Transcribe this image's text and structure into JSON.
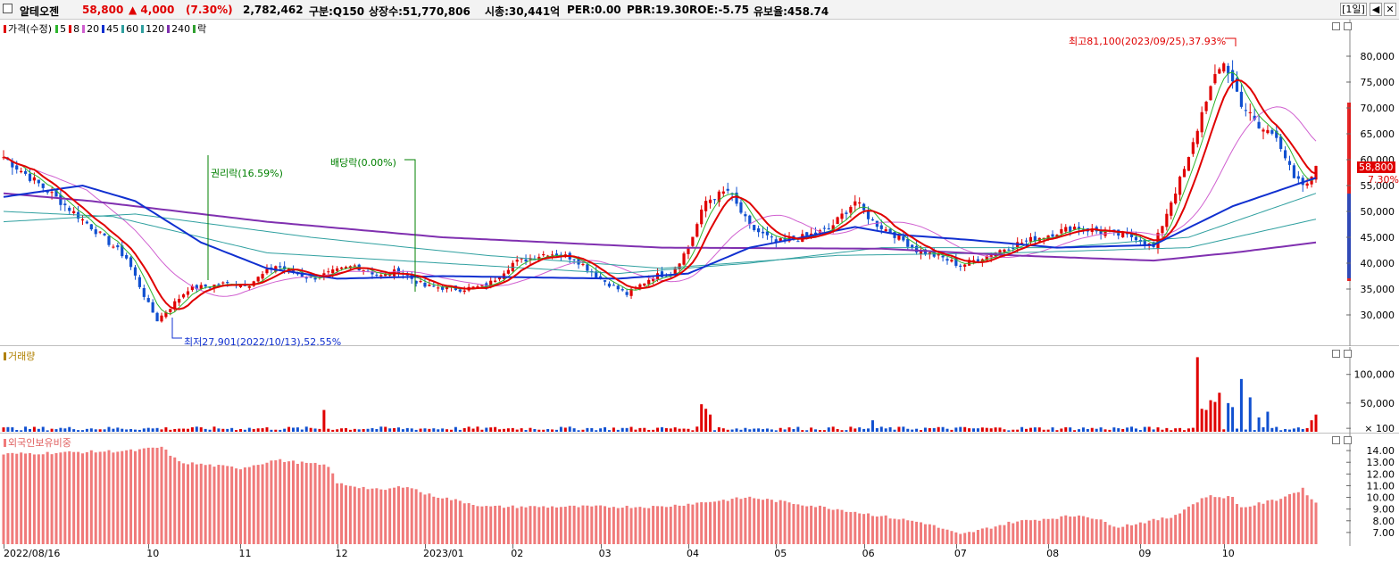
{
  "header": {
    "name": "알테오젠",
    "price": "58,800",
    "change": "▲ 4,000",
    "change_pct": "(7.30%)",
    "volume": "2,782,462",
    "market": "구분:Q150",
    "shares": "상장수:51,770,806",
    "cap": "시총:30,441억",
    "per": "PER:0.00",
    "pbr": "PBR:19.30",
    "roe": "ROE:-5.75",
    "retention": "유보율:458.74",
    "period_btn": "[1일]",
    "prev_btn": "◀",
    "close_btn": "✕"
  },
  "price_pane": {
    "legend_title": "가격(수정)",
    "legend": [
      {
        "label": "5",
        "color": "#2db52d"
      },
      {
        "label": "8",
        "color": "#e00000"
      },
      {
        "label": "20",
        "color": "#d060d0"
      },
      {
        "label": "45",
        "color": "#1030d0"
      },
      {
        "label": "60",
        "color": "#30a0a0"
      },
      {
        "label": "120",
        "color": "#30a0a0"
      },
      {
        "label": "240",
        "color": "#8030b0"
      },
      {
        "label": "락",
        "color": "#30a030"
      }
    ],
    "annotation_high": "최고81,100(2023/09/25),37.93%",
    "annotation_low": "최저27,901(2022/10/13),52.55%",
    "annotation_rights": "권리락(16.59%)",
    "annotation_dividend": "배당락(0.00%)",
    "last_price_badge": "58,800",
    "last_pct_badge": "7.30%"
  },
  "volume_pane": {
    "title": "거래량"
  },
  "foreign_pane": {
    "title": "외국인보유비중"
  },
  "colors": {
    "up": "#e00000",
    "down": "#1050d0",
    "ma5": "#2db52d",
    "ma8": "#e00000",
    "ma20": "#d060d0",
    "ma45": "#1030d0",
    "ma60": "#30a0a0",
    "ma240": "#8030b0",
    "foreign": "#f07a7a",
    "volume_up": "#e00000",
    "volume_down": "#1050d0"
  },
  "chart_data": [
    {
      "type": "line",
      "name": "가격(수정)",
      "ylim": [
        25000,
        85000
      ],
      "yticks": [
        "80,000",
        "75,000",
        "70,000",
        "65,000",
        "60,000",
        "55,000",
        "50,000",
        "45,000",
        "40,000",
        "35,000",
        "30,000"
      ],
      "x_labels": [
        "2022/08/16",
        "10",
        "11",
        "12",
        "2023/01",
        "02",
        "03",
        "04",
        "05",
        "06",
        "07",
        "08",
        "09",
        "10"
      ],
      "x_label_index": [
        0,
        33,
        54,
        76,
        96,
        116,
        136,
        156,
        176,
        196,
        217,
        238,
        259,
        278
      ],
      "price_anchors": [
        [
          0,
          60500
        ],
        [
          10,
          54000
        ],
        [
          20,
          47000
        ],
        [
          28,
          41000
        ],
        [
          33,
          32000
        ],
        [
          35,
          29000
        ],
        [
          38,
          31500
        ],
        [
          42,
          35000
        ],
        [
          50,
          36000
        ],
        [
          56,
          36000
        ],
        [
          62,
          39500
        ],
        [
          70,
          37000
        ],
        [
          80,
          39500
        ],
        [
          86,
          37500
        ],
        [
          90,
          38500
        ],
        [
          96,
          35500
        ],
        [
          104,
          35000
        ],
        [
          110,
          35500
        ],
        [
          116,
          40000
        ],
        [
          124,
          42000
        ],
        [
          130,
          41000
        ],
        [
          136,
          37000
        ],
        [
          142,
          34000
        ],
        [
          148,
          37500
        ],
        [
          152,
          38000
        ],
        [
          156,
          43000
        ],
        [
          160,
          52000
        ],
        [
          165,
          54000
        ],
        [
          170,
          47000
        ],
        [
          176,
          44000
        ],
        [
          182,
          45000
        ],
        [
          188,
          46500
        ],
        [
          194,
          52000
        ],
        [
          198,
          48000
        ],
        [
          204,
          45000
        ],
        [
          208,
          42500
        ],
        [
          214,
          41000
        ],
        [
          218,
          39500
        ],
        [
          224,
          41500
        ],
        [
          230,
          43500
        ],
        [
          236,
          45000
        ],
        [
          244,
          47000
        ],
        [
          250,
          46000
        ],
        [
          258,
          45000
        ],
        [
          262,
          43000
        ],
        [
          266,
          52000
        ],
        [
          270,
          60000
        ],
        [
          274,
          72000
        ],
        [
          278,
          79000
        ],
        [
          282,
          71000
        ],
        [
          286,
          66000
        ],
        [
          290,
          65000
        ],
        [
          294,
          56000
        ],
        [
          297,
          54800
        ],
        [
          299,
          58800
        ]
      ],
      "ma240_anchors": [
        [
          0,
          53500
        ],
        [
          20,
          52000
        ],
        [
          60,
          48000
        ],
        [
          100,
          45000
        ],
        [
          150,
          43000
        ],
        [
          200,
          42800
        ],
        [
          230,
          41500
        ],
        [
          262,
          40500
        ],
        [
          280,
          42000
        ],
        [
          299,
          44000
        ]
      ],
      "ma45_anchors": [
        [
          0,
          52800
        ],
        [
          18,
          55000
        ],
        [
          30,
          52000
        ],
        [
          45,
          44000
        ],
        [
          60,
          39000
        ],
        [
          76,
          37000
        ],
        [
          100,
          37500
        ],
        [
          140,
          37000
        ],
        [
          156,
          38000
        ],
        [
          170,
          43000
        ],
        [
          194,
          47000
        ],
        [
          204,
          45500
        ],
        [
          220,
          44500
        ],
        [
          240,
          43000
        ],
        [
          262,
          43500
        ],
        [
          280,
          51000
        ],
        [
          299,
          56500
        ]
      ],
      "ma60_anchors": [
        [
          0,
          50000
        ],
        [
          25,
          49000
        ],
        [
          60,
          42000
        ],
        [
          100,
          40000
        ],
        [
          140,
          38000
        ],
        [
          170,
          40000
        ],
        [
          200,
          43000
        ],
        [
          240,
          43000
        ],
        [
          270,
          45000
        ],
        [
          299,
          53500
        ]
      ],
      "ma120_anchors": [
        [
          0,
          48000
        ],
        [
          30,
          49500
        ],
        [
          70,
          45000
        ],
        [
          110,
          41500
        ],
        [
          150,
          39000
        ],
        [
          190,
          41500
        ],
        [
          230,
          42000
        ],
        [
          270,
          43000
        ],
        [
          299,
          48500
        ]
      ],
      "high": {
        "value": 81100,
        "date": "2023/09/25",
        "pct": 37.93
      },
      "low": {
        "value": 27901,
        "date": "2022/10/13",
        "pct": 52.55
      },
      "last": 58800
    },
    {
      "type": "bar",
      "name": "거래량",
      "ylim": [
        0,
        140000
      ],
      "yticks": [
        "100,000",
        "50,000",
        "× 100"
      ],
      "spikes": [
        [
          73,
          38000
        ],
        [
          159,
          48000
        ],
        [
          160,
          40000
        ],
        [
          161,
          30000
        ],
        [
          198,
          20000
        ],
        [
          272,
          130000
        ],
        [
          273,
          40000
        ],
        [
          274,
          38000
        ],
        [
          275,
          55000
        ],
        [
          276,
          52000
        ],
        [
          277,
          68000
        ],
        [
          279,
          50000
        ],
        [
          280,
          43000
        ],
        [
          282,
          92000
        ],
        [
          284,
          60000
        ],
        [
          286,
          25000
        ],
        [
          288,
          35000
        ],
        [
          298,
          20000
        ],
        [
          299,
          30000
        ]
      ]
    },
    {
      "type": "bar",
      "name": "외국인보유비중",
      "ylim": [
        6.0,
        15.0
      ],
      "yticks": [
        "14.00",
        "13.00",
        "12.00",
        "11.00",
        "10.00",
        "9.00",
        "8.00",
        "7.00"
      ],
      "anchors": [
        [
          0,
          13.7
        ],
        [
          30,
          14.0
        ],
        [
          36,
          14.3
        ],
        [
          40,
          13.0
        ],
        [
          54,
          12.5
        ],
        [
          62,
          13.2
        ],
        [
          74,
          12.7
        ],
        [
          76,
          11.2
        ],
        [
          86,
          10.6
        ],
        [
          92,
          11.0
        ],
        [
          96,
          10.3
        ],
        [
          110,
          9.2
        ],
        [
          130,
          9.2
        ],
        [
          150,
          9.2
        ],
        [
          170,
          10.0
        ],
        [
          190,
          9.0
        ],
        [
          210,
          7.8
        ],
        [
          218,
          6.8
        ],
        [
          230,
          7.9
        ],
        [
          246,
          8.5
        ],
        [
          254,
          7.5
        ],
        [
          266,
          8.3
        ],
        [
          274,
          10.1
        ],
        [
          280,
          10.0
        ],
        [
          282,
          9.1
        ],
        [
          290,
          9.8
        ],
        [
          296,
          10.7
        ],
        [
          299,
          9.5
        ]
      ]
    }
  ]
}
